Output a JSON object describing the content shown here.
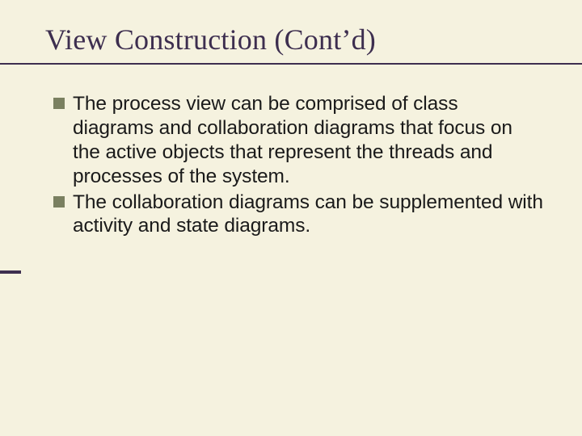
{
  "slide": {
    "title": "View Construction (Cont’d)",
    "bullets": [
      "The process view can be comprised of class diagrams and collaboration diagrams that focus on the active objects that represent the threads and processes of the system.",
      "The collaboration diagrams can be supplemented with activity and state diagrams."
    ],
    "colors": {
      "background": "#f5f2df",
      "title_color": "#3d2e4f",
      "underline_color": "#3d2e4f",
      "bullet_marker": "#7a8060",
      "body_text": "#1a1a1a",
      "accent_bar": "#3d2e4f"
    },
    "typography": {
      "title_font": "Times New Roman",
      "title_size_pt": 27,
      "body_font": "Arial",
      "body_size_pt": 18
    }
  }
}
